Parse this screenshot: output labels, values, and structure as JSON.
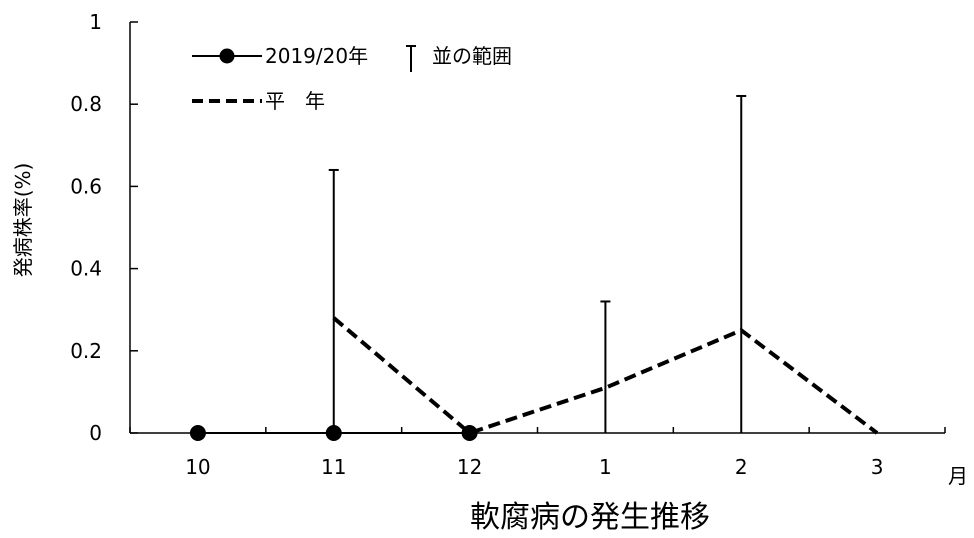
{
  "chart_data": {
    "type": "line",
    "xlabel": "軟腐病の発生推移",
    "ylabel": "発病株率(%)",
    "x_unit_label": "月",
    "categories": [
      "10",
      "11",
      "12",
      "1",
      "2",
      "3"
    ],
    "ylim": [
      0,
      1
    ],
    "yticks": [
      "0",
      "0.2",
      "0.4",
      "0.6",
      "0.8",
      "1"
    ],
    "ytick_values": [
      0,
      0.2,
      0.4,
      0.6,
      0.8,
      1
    ],
    "grid": false,
    "legend_position": "top-left",
    "series": [
      {
        "name": "2019/20年",
        "style": "solid-line-circle-markers",
        "color": "#000000",
        "values": [
          0,
          0,
          0,
          null,
          null,
          null
        ]
      },
      {
        "name": "平　年",
        "style": "dashed-line",
        "color": "#000000",
        "values": [
          null,
          0.28,
          0.0,
          0.11,
          0.25,
          0.0
        ]
      }
    ],
    "range_bars": {
      "name": "並の範囲",
      "upper": [
        null,
        0.64,
        null,
        0.32,
        0.82,
        null
      ]
    }
  }
}
